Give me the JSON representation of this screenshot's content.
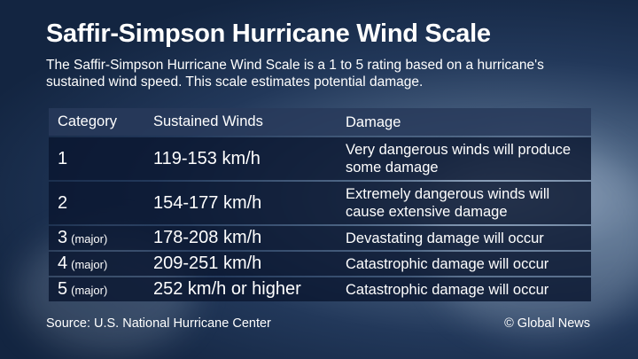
{
  "header": {
    "title": "Saffir-Simpson Hurricane Wind Scale",
    "subtitle": "The Saffir-Simpson Hurricane Wind Scale is a 1 to 5 rating based on a hurricane's sustained wind speed. This scale estimates potential damage."
  },
  "table": {
    "columns": [
      "Category",
      "Sustained Winds",
      "Damage"
    ],
    "rows": [
      {
        "category": "1",
        "winds": "119-153 km/h",
        "damage": "Very dangerous winds will produce some damage"
      },
      {
        "category": "2",
        "winds": "154-177 km/h",
        "damage": "Extremely dangerous winds will cause extensive damage"
      },
      {
        "category": "3",
        "note": "(major)",
        "winds": "178-208 km/h",
        "damage": "Devastating damage will occur"
      },
      {
        "category": "4",
        "note": "(major)",
        "winds": "209-251 km/h",
        "damage": "Catastrophic damage will occur"
      },
      {
        "category": "5",
        "note": "(major)",
        "winds": "252 km/h or higher",
        "damage": "Catastrophic damage will occur"
      }
    ]
  },
  "footer": {
    "source": "Source: U.S. National Hurricane Center",
    "credit": "© Global News"
  }
}
